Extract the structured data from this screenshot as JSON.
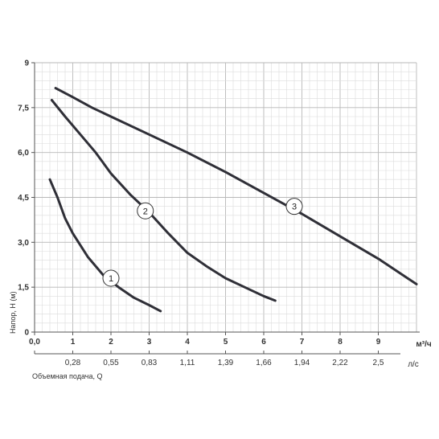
{
  "chart_data": {
    "type": "line",
    "ylabel": "Напор, H (м)",
    "xlabel": "Объемная подача, Q",
    "x_unit_top": "м³/ч",
    "x_unit_bottom": "л/с",
    "xlim": [
      0,
      10
    ],
    "ylim": [
      0,
      9
    ],
    "x_ticks": [
      {
        "v": 0,
        "label": "0,0"
      },
      {
        "v": 1,
        "label": "1"
      },
      {
        "v": 2,
        "label": "2"
      },
      {
        "v": 3,
        "label": "3"
      },
      {
        "v": 4,
        "label": "4"
      },
      {
        "v": 5,
        "label": "5"
      },
      {
        "v": 6,
        "label": "6"
      },
      {
        "v": 7,
        "label": "7"
      },
      {
        "v": 8,
        "label": "8"
      },
      {
        "v": 9,
        "label": "9"
      }
    ],
    "x_ticks_ls": [
      {
        "v": 1,
        "label": "0,28"
      },
      {
        "v": 2,
        "label": "0,55"
      },
      {
        "v": 3,
        "label": "0,83"
      },
      {
        "v": 4,
        "label": "1,11"
      },
      {
        "v": 5,
        "label": "1,39"
      },
      {
        "v": 6,
        "label": "1,66"
      },
      {
        "v": 7,
        "label": "1,94"
      },
      {
        "v": 8,
        "label": "2,22"
      },
      {
        "v": 9,
        "label": "2,5"
      }
    ],
    "y_ticks": [
      {
        "v": 0,
        "label": "0"
      },
      {
        "v": 1.5,
        "label": "1,5"
      },
      {
        "v": 3,
        "label": "3,0"
      },
      {
        "v": 4.5,
        "label": "4,5"
      },
      {
        "v": 6,
        "label": "6,0"
      },
      {
        "v": 7.5,
        "label": "7,5"
      },
      {
        "v": 9,
        "label": "9"
      }
    ],
    "grid": true,
    "series": [
      {
        "name": "1",
        "label_at": [
          2.0,
          1.8
        ],
        "points": [
          [
            0.4,
            5.1
          ],
          [
            0.6,
            4.5
          ],
          [
            0.8,
            3.8
          ],
          [
            1.0,
            3.3
          ],
          [
            1.4,
            2.5
          ],
          [
            1.8,
            1.9
          ],
          [
            2.2,
            1.5
          ],
          [
            2.6,
            1.15
          ],
          [
            3.0,
            0.9
          ],
          [
            3.3,
            0.7
          ]
        ]
      },
      {
        "name": "2",
        "label_at": [
          2.9,
          4.05
        ],
        "points": [
          [
            0.45,
            7.75
          ],
          [
            0.8,
            7.2
          ],
          [
            1.2,
            6.6
          ],
          [
            1.6,
            6.0
          ],
          [
            2.0,
            5.3
          ],
          [
            2.5,
            4.6
          ],
          [
            3.0,
            4.0
          ],
          [
            3.5,
            3.3
          ],
          [
            4.0,
            2.65
          ],
          [
            4.5,
            2.2
          ],
          [
            5.0,
            1.8
          ],
          [
            5.5,
            1.5
          ],
          [
            6.0,
            1.2
          ],
          [
            6.3,
            1.05
          ]
        ]
      },
      {
        "name": "3",
        "label_at": [
          6.8,
          4.2
        ],
        "points": [
          [
            0.55,
            8.15
          ],
          [
            1.0,
            7.85
          ],
          [
            1.5,
            7.5
          ],
          [
            2.0,
            7.2
          ],
          [
            3.0,
            6.6
          ],
          [
            4.0,
            6.0
          ],
          [
            5.0,
            5.35
          ],
          [
            6.0,
            4.65
          ],
          [
            7.0,
            3.95
          ],
          [
            8.0,
            3.2
          ],
          [
            9.0,
            2.45
          ],
          [
            10.0,
            1.6
          ]
        ]
      }
    ]
  }
}
